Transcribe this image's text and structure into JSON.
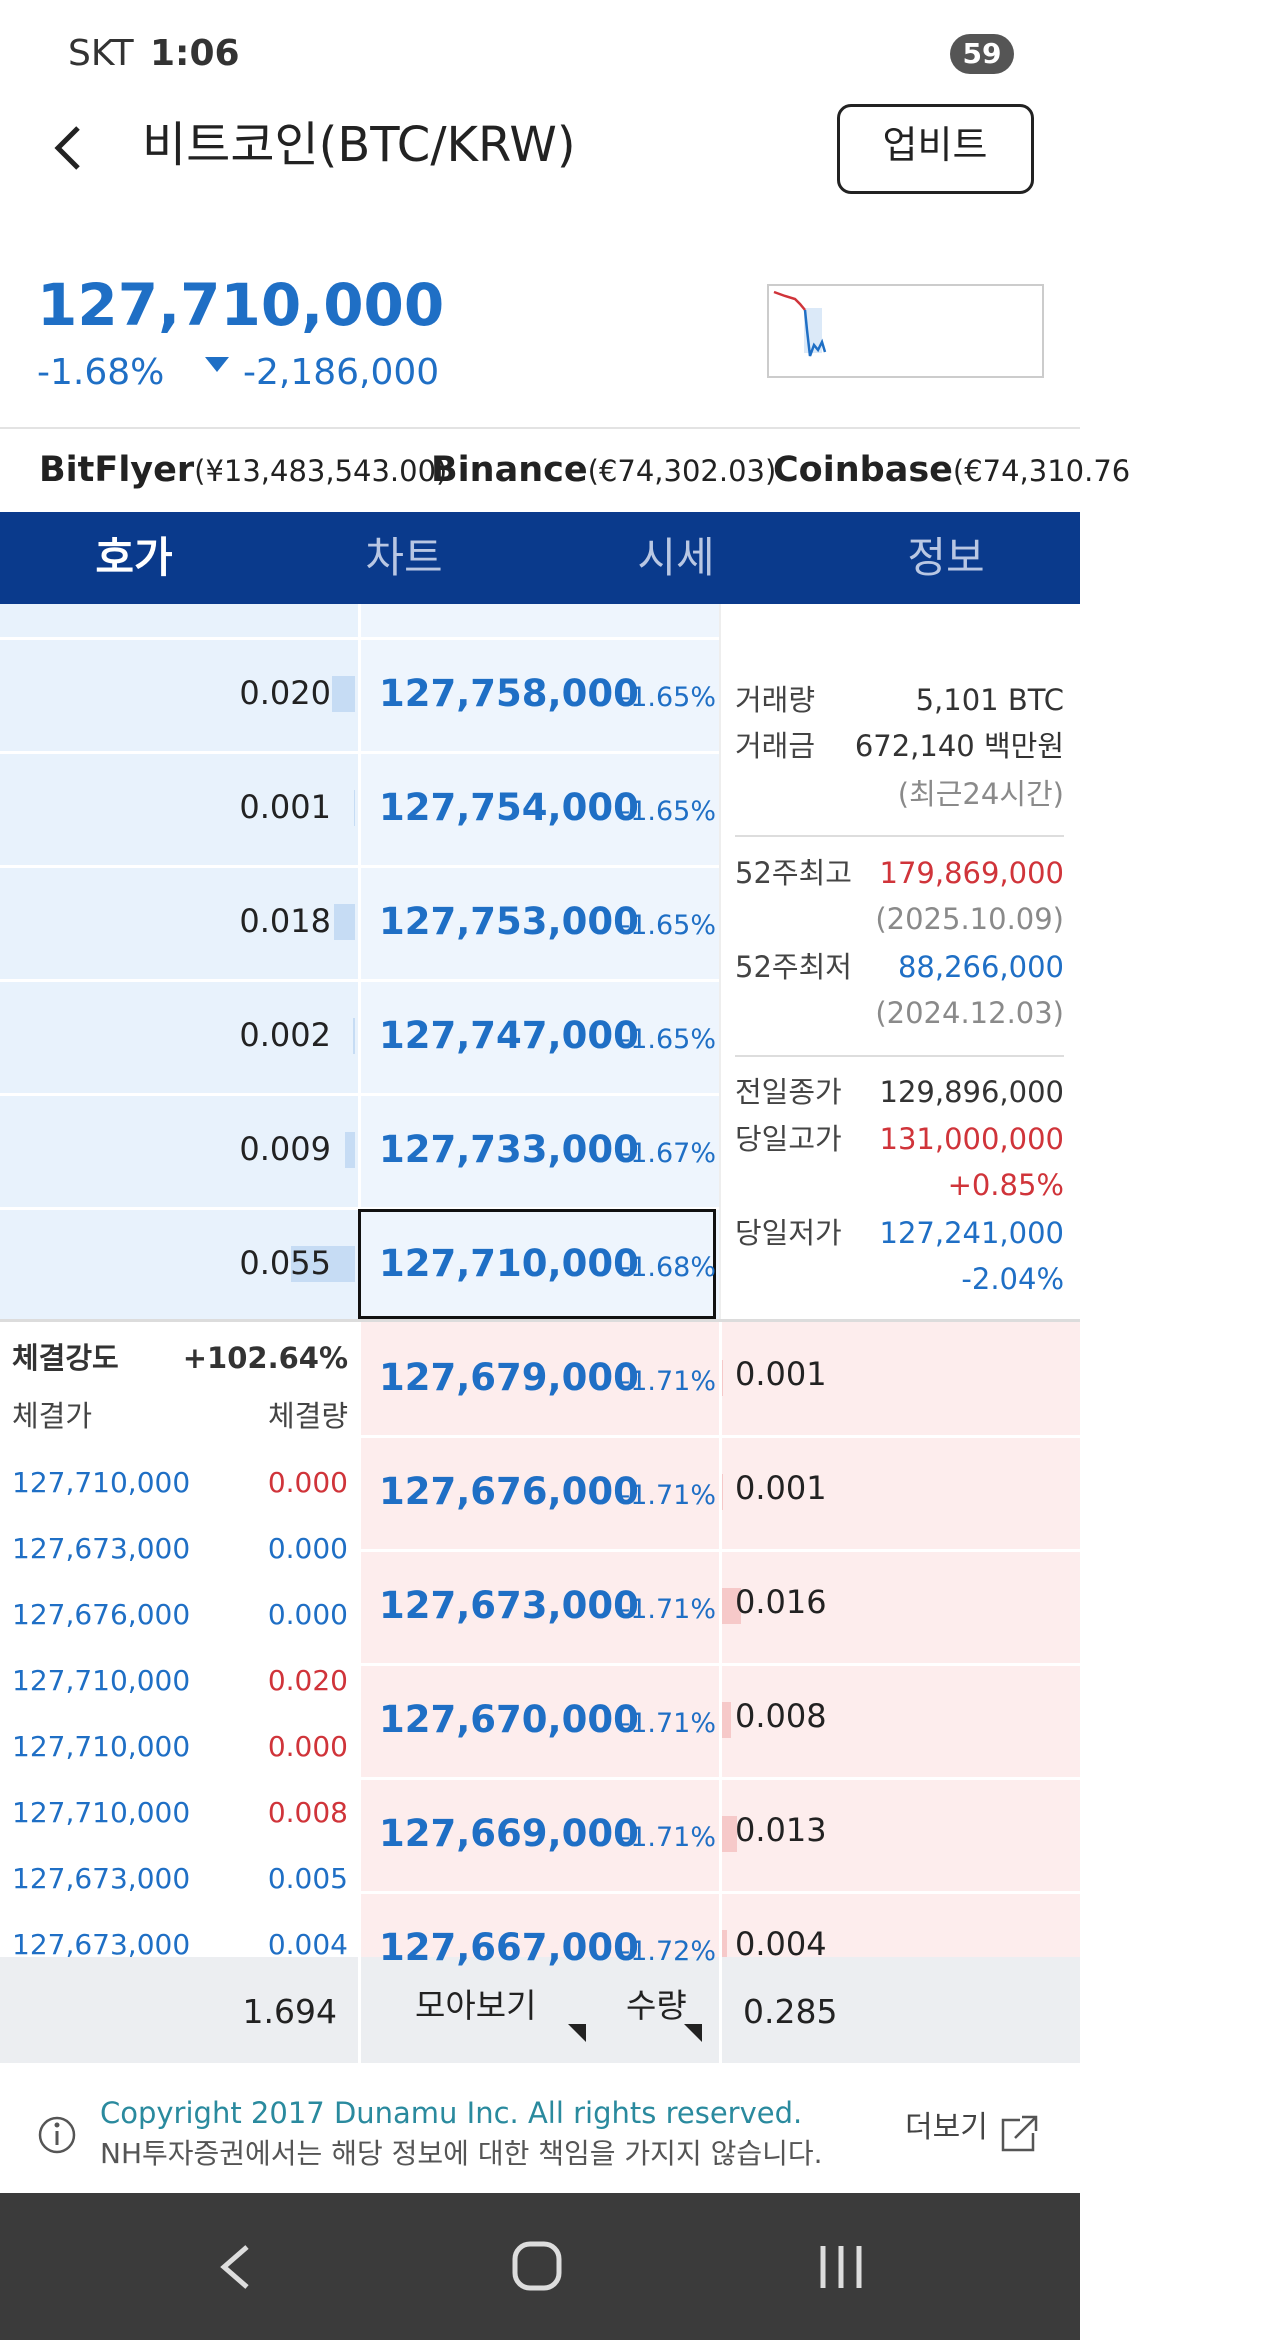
{
  "status_bar": {
    "carrier": "SKT",
    "time": "1:06",
    "battery": "59"
  },
  "header": {
    "title": "비트코인(BTC/KRW)",
    "button": "업비트"
  },
  "price": {
    "current": "127,710,000",
    "change_percent": "-1.68%",
    "change_amount": "-2,186,000"
  },
  "exchanges": [
    {
      "name": "BitFlyer",
      "price": "(¥13,483,543.00)"
    },
    {
      "name": "Binance",
      "price": "(€74,302.03)"
    },
    {
      "name": "Coinbase",
      "price": "(€74,310.76"
    }
  ],
  "tabs": [
    "호가",
    "차트",
    "시세",
    "정보"
  ],
  "order_book": {
    "asks": [
      {
        "quantity": "0.020",
        "price": "127,758,000",
        "change": "-1.65%"
      },
      {
        "quantity": "0.001",
        "price": "127,754,000",
        "change": "-1.65%"
      },
      {
        "quantity": "0.018",
        "price": "127,753,000",
        "change": "-1.65%"
      },
      {
        "quantity": "0.002",
        "price": "127,747,000",
        "change": "-1.65%"
      },
      {
        "quantity": "0.009",
        "price": "127,733,000",
        "change": "-1.67%"
      },
      {
        "quantity": "0.055",
        "price": "127,710,000",
        "change": "-1.68%"
      }
    ],
    "bids": [
      {
        "price": "127,679,000",
        "change": "-1.71%",
        "quantity": "0.001"
      },
      {
        "price": "127,676,000",
        "change": "-1.71%",
        "quantity": "0.001"
      },
      {
        "price": "127,673,000",
        "change": "-1.71%",
        "quantity": "0.016"
      },
      {
        "price": "127,670,000",
        "change": "-1.71%",
        "quantity": "0.008"
      },
      {
        "price": "127,669,000",
        "change": "-1.71%",
        "quantity": "0.013"
      },
      {
        "price": "127,667,000",
        "change": "-1.72%",
        "quantity": "0.004"
      }
    ],
    "bottom": {
      "ask_total": "1.694",
      "group_button": "모아보기",
      "unit_button": "수량",
      "bid_total": "0.285"
    }
  },
  "market_info": [
    {
      "label": "거래량",
      "value": "5,101 BTC",
      "color": "#333333"
    },
    {
      "label": "거래금",
      "value": "672,140 백만원",
      "color": "#333333",
      "note": "(최근24시간)",
      "note_color": "#8a8a8a"
    },
    {
      "label": "52주최고",
      "value": "179,869,000",
      "color": "#d0343a",
      "note": "(2025.10.09)",
      "note_color": "#8a8a8a"
    },
    {
      "label": "52주최저",
      "value": "88,266,000",
      "color": "#1f6fc5",
      "note": "(2024.12.03)",
      "note_color": "#8a8a8a"
    },
    {
      "label": "전일종가",
      "value": "129,896,000",
      "color": "#333333"
    },
    {
      "label": "당일고가",
      "value": "131,000,000",
      "color": "#d0343a",
      "note": "+0.85%",
      "note_color": "#d0343a"
    },
    {
      "label": "당일저가",
      "value": "127,241,000",
      "color": "#1f6fc5",
      "note": "-2.04%",
      "note_color": "#1f6fc5"
    }
  ],
  "trades": {
    "strength_label": "체결강도",
    "strength": "+102.64%",
    "price_header": "체결가",
    "volume_header": "체결량",
    "rows": [
      {
        "price": "127,710,000",
        "volume": "0.000",
        "color": "#d0343a"
      },
      {
        "price": "127,673,000",
        "volume": "0.000",
        "color": "#1f6fc5"
      },
      {
        "price": "127,676,000",
        "volume": "0.000",
        "color": "#1f6fc5"
      },
      {
        "price": "127,710,000",
        "volume": "0.020",
        "color": "#d0343a"
      },
      {
        "price": "127,710,000",
        "volume": "0.000",
        "color": "#d0343a"
      },
      {
        "price": "127,710,000",
        "volume": "0.008",
        "color": "#d0343a"
      },
      {
        "price": "127,673,000",
        "volume": "0.005",
        "color": "#1f6fc5"
      },
      {
        "price": "127,673,000",
        "volume": "0.004",
        "color": "#1f6fc5"
      }
    ]
  },
  "footer": {
    "copyright": "Copyright 2017 Dunamu Inc. All rights reserved.",
    "disclaimer": "NH투자증권에서는 해당 정보에 대한 책임을 가지지 않습니다.",
    "more": "더보기"
  }
}
